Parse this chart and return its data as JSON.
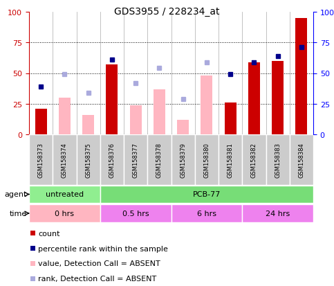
{
  "title": "GDS3955 / 228234_at",
  "samples": [
    "GSM158373",
    "GSM158374",
    "GSM158375",
    "GSM158376",
    "GSM158377",
    "GSM158378",
    "GSM158379",
    "GSM158380",
    "GSM158381",
    "GSM158382",
    "GSM158383",
    "GSM158384"
  ],
  "count_values": [
    21,
    null,
    null,
    57,
    null,
    null,
    null,
    null,
    26,
    59,
    60,
    95
  ],
  "absent_bar_values": [
    null,
    30,
    16,
    null,
    24,
    37,
    12,
    48,
    null,
    null,
    null,
    null
  ],
  "rank_blue_values": [
    39,
    null,
    null,
    61,
    null,
    null,
    null,
    null,
    49,
    59,
    64,
    71
  ],
  "absent_rank_values": [
    null,
    49,
    34,
    null,
    42,
    54,
    29,
    59,
    null,
    null,
    null,
    null
  ],
  "ylim": [
    0,
    100
  ],
  "yticks": [
    0,
    25,
    50,
    75,
    100
  ],
  "bar_color_count": "#CC0000",
  "bar_color_absent": "#FFB6C1",
  "dot_color_rank": "#00008B",
  "dot_color_absent_rank": "#AAAADD",
  "agent_untreated_color": "#90EE90",
  "agent_pcb_color": "#77DD77",
  "time_0_color": "#FFB6C1",
  "time_other_color": "#EE82EE",
  "sample_bg_color": "#CCCCCC",
  "legend_items": [
    {
      "color": "#CC0000",
      "label": "count"
    },
    {
      "color": "#00008B",
      "label": "percentile rank within the sample"
    },
    {
      "color": "#FFB6C1",
      "label": "value, Detection Call = ABSENT"
    },
    {
      "color": "#AAAADD",
      "label": "rank, Detection Call = ABSENT"
    }
  ]
}
